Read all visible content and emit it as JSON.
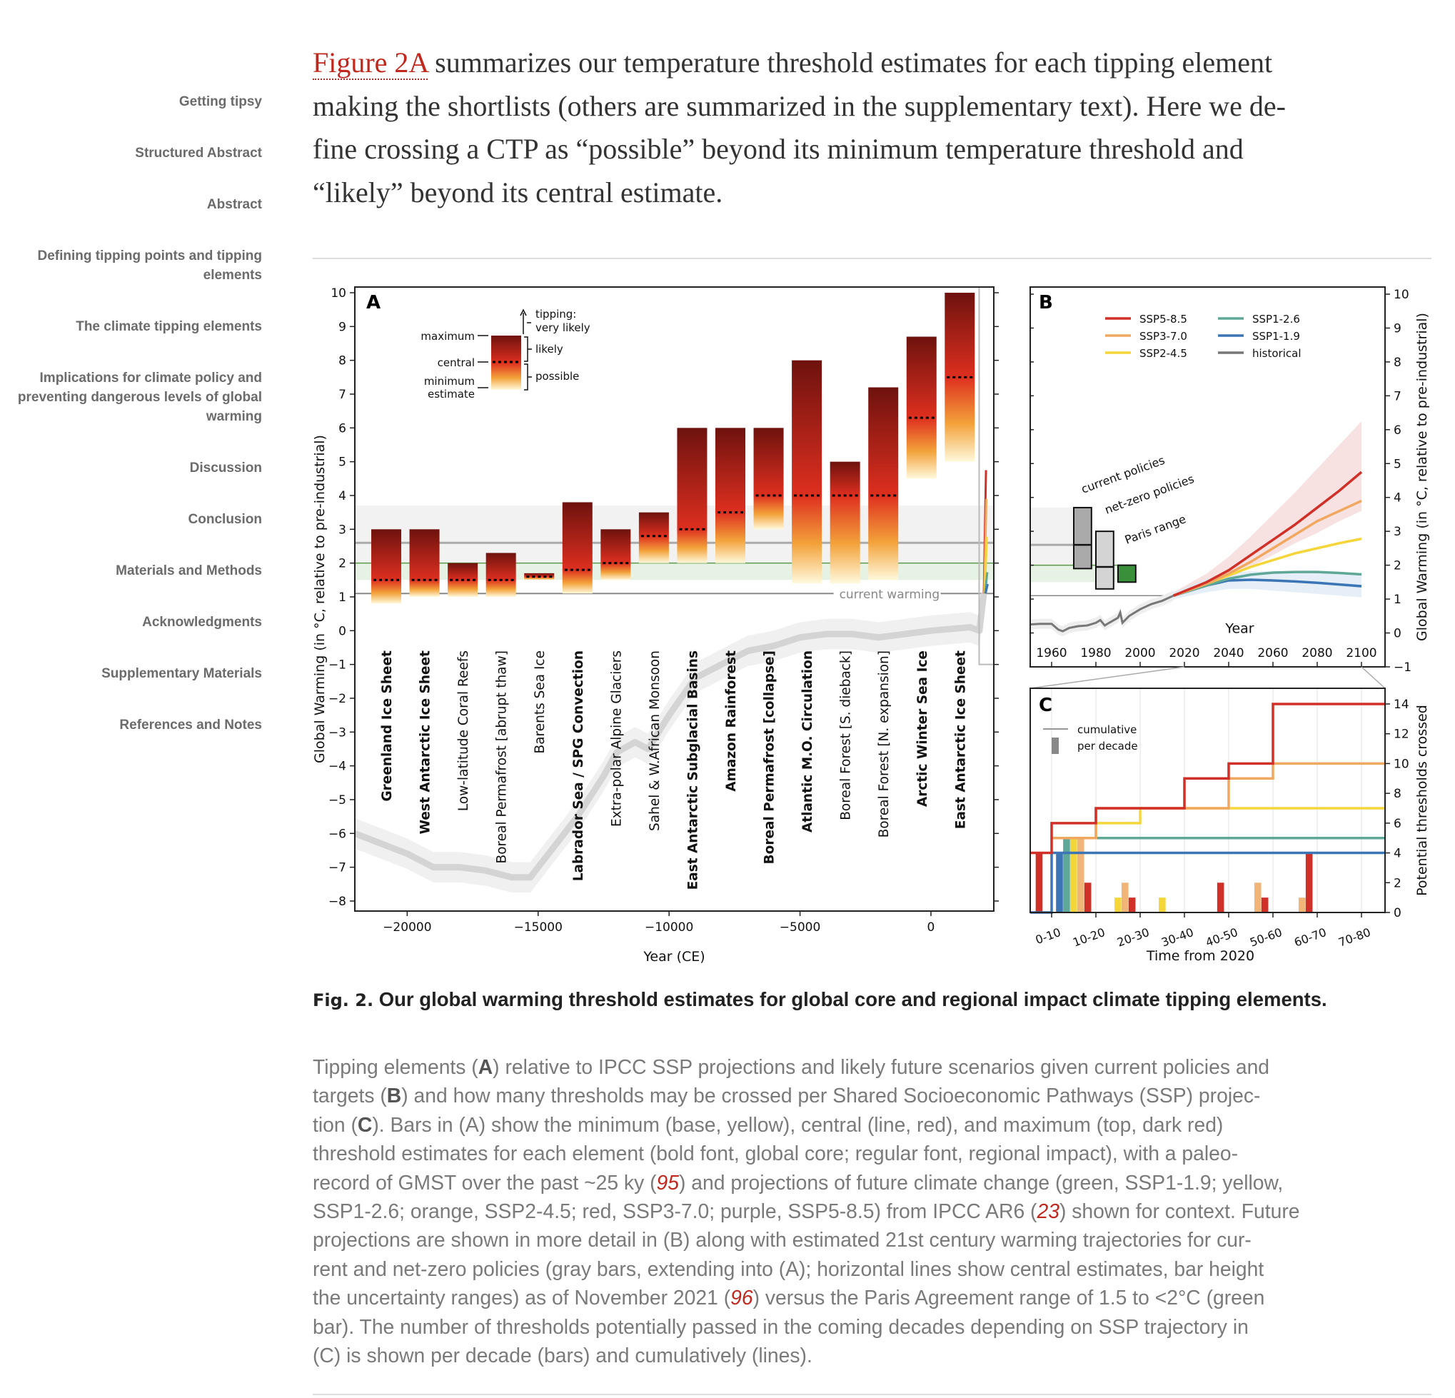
{
  "sidebar": {
    "items": [
      {
        "label": "Getting tipsy"
      },
      {
        "label": "Structured Abstract"
      },
      {
        "label": "Abstract"
      },
      {
        "label": "Defining tipping points and tipping elements"
      },
      {
        "label": "The climate tipping elements"
      },
      {
        "label": "Implications for climate policy and preventing dangerous levels of global warming"
      },
      {
        "label": "Discussion"
      },
      {
        "label": "Conclusion"
      },
      {
        "label": "Materials and Methods"
      },
      {
        "label": "Acknowledgments"
      },
      {
        "label": "Supplementary Materials"
      },
      {
        "label": "References and Notes"
      }
    ]
  },
  "paragraph": {
    "link": "Figure 2A",
    "line0": " summarizes our temperature threshold estimates for each tipping element",
    "line1": "making the shortlists (others are summarized in the supplementary text). Here we de-",
    "line2": "fine crossing a CTP as “possible” beyond its minimum temperature threshold and",
    "line3": "“likely” beyond its central estimate."
  },
  "caption": {
    "label": "Fig. 2.",
    "title": "Our global warming threshold estimates for global core and regional impact climate tipping elements.",
    "lines": [
      [
        {
          "t": "Tipping elements ("
        },
        {
          "t": "A",
          "b": 1
        },
        {
          "t": ") relative to IPCC SSP projections and likely future scenarios given current policies and"
        }
      ],
      [
        {
          "t": "targets ("
        },
        {
          "t": "B",
          "b": 1
        },
        {
          "t": ") and how many thresholds may be crossed per Shared Socioeconomic Pathways (SSP) projec-"
        }
      ],
      [
        {
          "t": "tion ("
        },
        {
          "t": "C",
          "b": 1
        },
        {
          "t": "). Bars in (A) show the minimum (base, yellow), central (line, red), and maximum (top, dark red)"
        }
      ],
      [
        {
          "t": "threshold estimates for each element (bold font, global core; regular font, regional impact), with a paleo-"
        }
      ],
      [
        {
          "t": "record of GMST over the past ~25 ky ("
        },
        {
          "t": "95",
          "r": 1
        },
        {
          "t": ") and projections of future climate change (green, SSP1-1.9; yellow,"
        }
      ],
      [
        {
          "t": "SSP1-2.6; orange, SSP2-4.5; red, SSP3-7.0; purple, SSP5-8.5) from IPCC AR6 ("
        },
        {
          "t": "23",
          "r": 1
        },
        {
          "t": ") shown for context. Future"
        }
      ],
      [
        {
          "t": "projections are shown in more detail in (B) along with estimated 21st century warming trajectories for cur-"
        }
      ],
      [
        {
          "t": "rent and net-zero policies (gray bars, extending into (A); horizontal lines show central estimates, bar height"
        }
      ],
      [
        {
          "t": "the uncertainty ranges) as of November 2021 ("
        },
        {
          "t": "96",
          "r": 1
        },
        {
          "t": ") versus the Paris Agreement range of 1.5 to <2°C (green"
        }
      ],
      [
        {
          "t": "bar). The number of thresholds potentially passed in the coming decades depending on SSP trajectory in"
        }
      ],
      [
        {
          "t": "(C) is shown per decade (bars) and cumulatively (lines)."
        }
      ]
    ]
  },
  "colors": {
    "link": "#c0281e",
    "ssp585": "#d03027",
    "ssp370": "#f0a860",
    "ssp245": "#f5d63a",
    "ssp126": "#5fa898",
    "ssp119": "#3b75b5",
    "historical": "#777777",
    "paris": "#3a8f3a"
  },
  "chart_data": [
    {
      "type": "bar",
      "panel": "A",
      "xlabel": "Year (CE)",
      "ylabel": "Global Warming (in °C, relative to pre-industrial)",
      "xlim": [
        -22000,
        2400
      ],
      "ylim": [
        -8.3,
        10.2
      ],
      "xticks": [
        "−20000",
        "−15000",
        "−10000",
        "−5000",
        "0"
      ],
      "xtick_values": [
        -20000,
        -15000,
        -10000,
        -5000,
        0
      ],
      "yticks": [
        "−8",
        "−7",
        "−6",
        "−5",
        "−4",
        "−3",
        "−2",
        "−1",
        "0",
        "1",
        "2",
        "3",
        "4",
        "5",
        "6",
        "7",
        "8",
        "9",
        "10"
      ],
      "legend": {
        "maximum": "maximum",
        "central": "central",
        "minimum": "minimum",
        "estimate": "estimate",
        "tipping": "tipping:",
        "very_likely": "very likely",
        "likely": "likely",
        "possible": "possible"
      },
      "current_warming_label": "current warming",
      "current_warming": 1.1,
      "elements": [
        {
          "name": "Greenland Ice Sheet",
          "min": 0.8,
          "central": 1.5,
          "max": 3.0,
          "bold": true
        },
        {
          "name": "West Antarctic Ice Sheet",
          "min": 1.0,
          "central": 1.5,
          "max": 3.0,
          "bold": true
        },
        {
          "name": "Low-latitude Coral Reefs",
          "min": 1.0,
          "central": 1.5,
          "max": 2.0,
          "bold": false
        },
        {
          "name": "Boreal Permafrost [abrupt thaw]",
          "min": 1.0,
          "central": 1.5,
          "max": 2.3,
          "bold": false
        },
        {
          "name": "Barents Sea Ice",
          "min": 1.5,
          "central": 1.6,
          "max": 1.7,
          "bold": false
        },
        {
          "name": "Labrador Sea / SPG Convection",
          "min": 1.1,
          "central": 1.8,
          "max": 3.8,
          "bold": true
        },
        {
          "name": "Extra-polar Alpine Glaciers",
          "min": 1.5,
          "central": 2.0,
          "max": 3.0,
          "bold": false
        },
        {
          "name": "Sahel & W.African Monsoon",
          "min": 2.0,
          "central": 2.8,
          "max": 3.5,
          "bold": false
        },
        {
          "name": "East Antarctic Subglacial Basins",
          "min": 2.0,
          "central": 3.0,
          "max": 6.0,
          "bold": true
        },
        {
          "name": "Amazon Rainforest",
          "min": 2.0,
          "central": 3.5,
          "max": 6.0,
          "bold": true
        },
        {
          "name": "Boreal Permafrost [collapse]",
          "min": 3.0,
          "central": 4.0,
          "max": 6.0,
          "bold": true
        },
        {
          "name": "Atlantic M.O. Circulation",
          "min": 1.4,
          "central": 4.0,
          "max": 8.0,
          "bold": true
        },
        {
          "name": "Boreal Forest [S. dieback]",
          "min": 1.4,
          "central": 4.0,
          "max": 5.0,
          "bold": false
        },
        {
          "name": "Boreal Forest [N. expansion]",
          "min": 1.5,
          "central": 4.0,
          "max": 7.2,
          "bold": false
        },
        {
          "name": "Arctic Winter Sea Ice",
          "min": 4.5,
          "central": 6.3,
          "max": 8.7,
          "bold": true
        },
        {
          "name": "East Antarctic Ice Sheet",
          "min": 5.0,
          "central": 7.5,
          "max": 10.0,
          "bold": true
        }
      ],
      "paleo": [
        [
          -22000,
          -6.0
        ],
        [
          -21000,
          -6.3
        ],
        [
          -20000,
          -6.6
        ],
        [
          -19000,
          -7.0
        ],
        [
          -18000,
          -7.0
        ],
        [
          -17000,
          -7.1
        ],
        [
          -16000,
          -7.3
        ],
        [
          -15300,
          -7.3
        ],
        [
          -14500,
          -6.5
        ],
        [
          -13500,
          -5.5
        ],
        [
          -12500,
          -4.3
        ],
        [
          -12000,
          -3.6
        ],
        [
          -11300,
          -3.3
        ],
        [
          -10800,
          -3.5
        ],
        [
          -10000,
          -2.5
        ],
        [
          -9000,
          -1.4
        ],
        [
          -8000,
          -1.0
        ],
        [
          -7000,
          -0.6
        ],
        [
          -6000,
          -0.45
        ],
        [
          -5000,
          -0.2
        ],
        [
          -4000,
          -0.1
        ],
        [
          -3000,
          -0.1
        ],
        [
          -2000,
          -0.2
        ],
        [
          -1000,
          -0.1
        ],
        [
          0,
          0.0
        ],
        [
          1500,
          0.1
        ],
        [
          1850,
          0.0
        ],
        [
          2020,
          1.1
        ]
      ]
    },
    {
      "type": "line",
      "panel": "B",
      "xlabel": "Year",
      "ylabel": "Global Warming (in °C, relative to pre-industrial)",
      "xlim": [
        1950,
        2110
      ],
      "ylim": [
        -1,
        10.2
      ],
      "xticks": [
        "1960",
        "1980",
        "2000",
        "2020",
        "2040",
        "2060",
        "2080",
        "2100"
      ],
      "xtick_values": [
        1960,
        1980,
        2000,
        2020,
        2040,
        2060,
        2080,
        2100
      ],
      "yticks": [
        "−1",
        "0",
        "1",
        "2",
        "3",
        "4",
        "5",
        "6",
        "7",
        "8",
        "9",
        "10"
      ],
      "x": [
        2015,
        2030,
        2040,
        2050,
        2060,
        2070,
        2080,
        2090,
        2100
      ],
      "series": [
        {
          "name": "SSP5-8.5",
          "key": "ssp585",
          "values": [
            1.1,
            1.5,
            1.85,
            2.3,
            2.75,
            3.2,
            3.7,
            4.2,
            4.75
          ],
          "band": [
            [
              1.05,
              1.35,
              1.6,
              1.95,
              2.3,
              2.65,
              2.95,
              3.3,
              3.6
            ],
            [
              1.2,
              1.75,
              2.25,
              2.85,
              3.5,
              4.15,
              4.85,
              5.55,
              6.25
            ]
          ]
        },
        {
          "name": "SSP3-7.0",
          "key": "ssp370",
          "values": [
            1.1,
            1.45,
            1.75,
            2.1,
            2.5,
            2.9,
            3.3,
            3.6,
            3.9
          ]
        },
        {
          "name": "SSP2-4.5",
          "key": "ssp245",
          "values": [
            1.1,
            1.45,
            1.7,
            1.95,
            2.15,
            2.35,
            2.5,
            2.65,
            2.78
          ]
        },
        {
          "name": "SSP1-2.6",
          "key": "ssp126",
          "values": [
            1.1,
            1.4,
            1.6,
            1.72,
            1.78,
            1.8,
            1.8,
            1.77,
            1.73
          ]
        },
        {
          "name": "SSP1-1.9",
          "key": "ssp119",
          "values": [
            1.1,
            1.4,
            1.55,
            1.57,
            1.55,
            1.52,
            1.48,
            1.43,
            1.38
          ],
          "band": [
            [
              1.0,
              1.2,
              1.3,
              1.3,
              1.25,
              1.2,
              1.15,
              1.1,
              1.05
            ],
            [
              1.2,
              1.6,
              1.78,
              1.82,
              1.82,
              1.8,
              1.78,
              1.76,
              1.75
            ]
          ]
        }
      ],
      "historical": {
        "name": "historical",
        "points": [
          [
            1950,
            0.25
          ],
          [
            1955,
            0.27
          ],
          [
            1960,
            0.27
          ],
          [
            1963,
            0.1
          ],
          [
            1965,
            0.05
          ],
          [
            1968,
            0.15
          ],
          [
            1972,
            0.2
          ],
          [
            1976,
            0.22
          ],
          [
            1980,
            0.3
          ],
          [
            1982,
            0.38
          ],
          [
            1984,
            0.22
          ],
          [
            1986,
            0.3
          ],
          [
            1990,
            0.45
          ],
          [
            1991,
            0.6
          ],
          [
            1992,
            0.3
          ],
          [
            1995,
            0.5
          ],
          [
            2000,
            0.7
          ],
          [
            2005,
            0.85
          ],
          [
            2010,
            0.95
          ],
          [
            2015,
            1.1
          ]
        ]
      },
      "policy_boxes": [
        {
          "label": "current policies",
          "x": [
            1970,
            1978
          ],
          "low": 1.9,
          "central": 2.6,
          "high": 3.7,
          "color": "#aaaaaa"
        },
        {
          "label": "net-zero policies",
          "x": [
            1980,
            1988
          ],
          "low": 1.3,
          "central": 1.95,
          "high": 3.0,
          "color": "#d4d4d4"
        },
        {
          "label": "Paris range",
          "x": [
            1990,
            1998
          ],
          "low": 1.5,
          "high": 2.0,
          "color": "#3a8f3a"
        }
      ]
    },
    {
      "type": "bar",
      "panel": "C",
      "xlabel": "Time from 2020",
      "ylabel": "Potential thresholds crossed",
      "ylim": [
        0,
        15
      ],
      "categories": [
        "0-10",
        "10-20",
        "20-30",
        "30-40",
        "40-50",
        "50-60",
        "60-70",
        "70-80"
      ],
      "yticks": [
        "0",
        "2",
        "4",
        "6",
        "8",
        "10",
        "12",
        "14"
      ],
      "legend": {
        "cumulative": "cumulative",
        "per_decade": "per decade"
      },
      "cumulative": [
        {
          "key": "ssp585",
          "steps": [
            [
              -0.5,
              4
            ],
            [
              0,
              6
            ],
            [
              1,
              7
            ],
            [
              3,
              9
            ],
            [
              4,
              10
            ],
            [
              5,
              14
            ]
          ]
        },
        {
          "key": "ssp370",
          "steps": [
            [
              0,
              5
            ],
            [
              1,
              7
            ],
            [
              4,
              9
            ],
            [
              5,
              10
            ]
          ]
        },
        {
          "key": "ssp245",
          "steps": [
            [
              0,
              5
            ],
            [
              1,
              6
            ],
            [
              2,
              7
            ]
          ]
        },
        {
          "key": "ssp126",
          "steps": [
            [
              0,
              5
            ]
          ]
        },
        {
          "key": "ssp119",
          "steps": [
            [
              -0.5,
              0
            ],
            [
              0,
              4
            ]
          ]
        }
      ],
      "per_decade": [
        {
          "decade": -1,
          "key": "ssp585",
          "value": 4
        },
        {
          "decade": 0,
          "key": "ssp119",
          "value": 4
        },
        {
          "decade": 0,
          "key": "ssp126",
          "value": 5
        },
        {
          "decade": 0,
          "key": "ssp245",
          "value": 5
        },
        {
          "decade": 0,
          "key": "ssp370",
          "value": 5
        },
        {
          "decade": 0,
          "key": "ssp585",
          "value": 2
        },
        {
          "decade": 1,
          "key": "ssp245",
          "value": 1
        },
        {
          "decade": 1,
          "key": "ssp370",
          "value": 2
        },
        {
          "decade": 1,
          "key": "ssp585",
          "value": 1
        },
        {
          "decade": 2,
          "key": "ssp245",
          "value": 1
        },
        {
          "decade": 3,
          "key": "ssp585",
          "value": 2
        },
        {
          "decade": 4,
          "key": "ssp370",
          "value": 2
        },
        {
          "decade": 4,
          "key": "ssp585",
          "value": 1
        },
        {
          "decade": 5,
          "key": "ssp370",
          "value": 1
        },
        {
          "decade": 5,
          "key": "ssp585",
          "value": 4
        }
      ]
    }
  ],
  "panel_labels": {
    "a": "A",
    "b": "B",
    "c": "C"
  }
}
